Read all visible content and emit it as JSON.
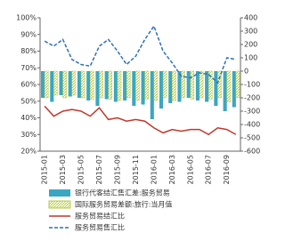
{
  "chart_data": {
    "type": "bar-line",
    "categories": [
      "2015-01",
      null,
      "2015-03",
      null,
      "2015-05",
      null,
      "2015-07",
      null,
      "2015-09",
      null,
      "2015-11",
      null,
      "2016-01",
      null,
      "2016-03",
      null,
      "2016-05",
      null,
      "2016-07",
      null,
      "2016-09",
      null
    ],
    "ylim": [
      0.2,
      1.0
    ],
    "yticks": [
      {
        "value": 0.2,
        "label": "20%"
      },
      {
        "value": 0.3,
        "label": "30%"
      },
      {
        "value": 0.4,
        "label": "40%"
      },
      {
        "value": 0.5,
        "label": "50%"
      },
      {
        "value": 0.6,
        "label": "60%"
      },
      {
        "value": 0.7,
        "label": "70%"
      },
      {
        "value": 0.8,
        "label": "80%"
      },
      {
        "value": 0.9,
        "label": "90%"
      },
      {
        "value": 1.0,
        "label": "100%"
      }
    ],
    "y2lim": [
      -600,
      400
    ],
    "y2ticks": [
      -600,
      -500,
      -400,
      -300,
      -200,
      -100,
      0,
      100,
      200,
      300,
      400
    ],
    "series": [
      {
        "name": "银行代客结汇售汇差:服务贸易",
        "type": "bar",
        "axis": "y2",
        "color": "#3aa6c2",
        "values": [
          -200,
          -230,
          -180,
          -190,
          -200,
          -220,
          -260,
          -210,
          -230,
          -220,
          -260,
          -250,
          -360,
          -280,
          -240,
          -230,
          -200,
          -220,
          -230,
          -260,
          -300,
          -270
        ]
      },
      {
        "name": "国际服务贸易差额:旅行:当月值",
        "type": "bar",
        "axis": "y2",
        "color": "#d6e08a",
        "values": [
          -200,
          -180,
          -200,
          -180,
          -200,
          -210,
          -200,
          -210,
          -220,
          -200,
          -220,
          -210,
          -220,
          -200,
          -220,
          -200,
          -210,
          -200,
          -210,
          -200,
          -230,
          -200
        ]
      },
      {
        "name": "服务贸易结汇比",
        "type": "line",
        "color": "#c0392b",
        "values": [
          0.47,
          0.41,
          0.44,
          0.45,
          0.44,
          0.41,
          0.46,
          0.39,
          0.4,
          0.38,
          0.39,
          0.38,
          0.34,
          0.31,
          0.33,
          0.32,
          0.33,
          0.33,
          0.3,
          0.34,
          0.33,
          0.3
        ]
      },
      {
        "name": "服务贸易售汇比",
        "type": "line",
        "dashed": true,
        "color": "#2e6fb5",
        "values": [
          0.86,
          0.83,
          0.87,
          0.75,
          0.72,
          0.71,
          0.83,
          0.87,
          0.8,
          0.72,
          0.77,
          0.87,
          0.95,
          0.8,
          0.73,
          0.65,
          0.64,
          0.67,
          0.66,
          0.61,
          0.76,
          0.75
        ]
      }
    ]
  }
}
